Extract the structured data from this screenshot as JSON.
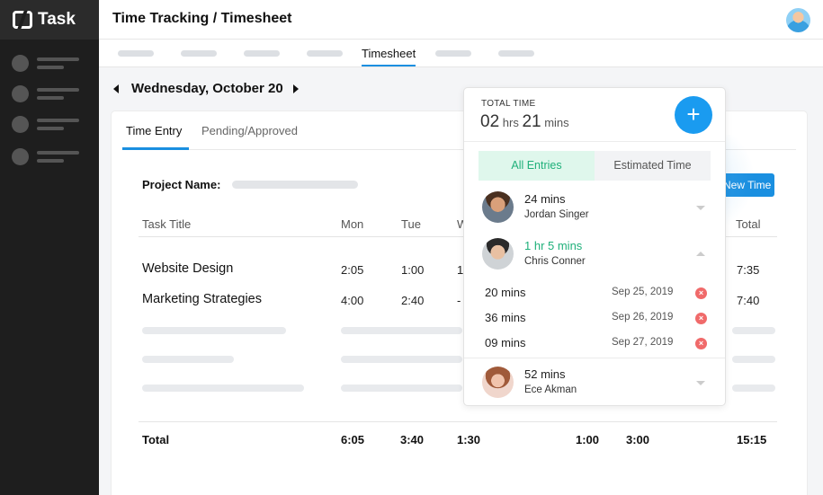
{
  "app": {
    "brand": "Task",
    "logo_icon": "ntask-logo-icon"
  },
  "header": {
    "title": "Time Tracking / Timesheet"
  },
  "subnav": {
    "active_tab": "Timesheet"
  },
  "date_nav": {
    "date": "Wednesday, October 20"
  },
  "card": {
    "tabs": [
      "Time Entry",
      "Pending/Approved"
    ],
    "project_label": "Project Name:",
    "new_entry_label": "New Time Entry",
    "columns": [
      "Task Title",
      "Mon",
      "Tue",
      "Wed",
      "Total"
    ],
    "rows": [
      {
        "task": "Website Design",
        "mon": "2:05",
        "tue": "1:00",
        "wed": "1",
        "total": "7:35"
      },
      {
        "task": "Marketing Strategies",
        "mon": "4:00",
        "tue": "2:40",
        "wed": "-",
        "total": "7:40"
      }
    ],
    "totals": {
      "label": "Total",
      "mon": "6:05",
      "tue": "3:40",
      "wed": "1:30",
      "col5": "1:00",
      "col6": "3:00",
      "total": "15:15"
    }
  },
  "popover": {
    "total_label": "TOTAL TIME",
    "hours": "02",
    "hours_unit": "hrs",
    "mins": "21",
    "mins_unit": "mins",
    "tabs": [
      "All Entries",
      "Estimated Time"
    ],
    "entries": [
      {
        "duration": "24 mins",
        "name": "Jordan Singer"
      },
      {
        "duration": "1 hr 5 mins",
        "name": "Chris Conner"
      },
      {
        "duration": "52 mins",
        "name": "Ece Akman"
      }
    ],
    "sub_entries": [
      {
        "duration": "20 mins",
        "date": "Sep 25, 2019"
      },
      {
        "duration": "36 mins",
        "date": "Sep 26, 2019"
      },
      {
        "duration": "09 mins",
        "date": "Sep 27, 2019"
      }
    ]
  },
  "colors": {
    "accent": "#1a8fe0",
    "green": "#1fb07a",
    "sidebar": "#1e1e1e",
    "danger": "#f06a6a"
  }
}
